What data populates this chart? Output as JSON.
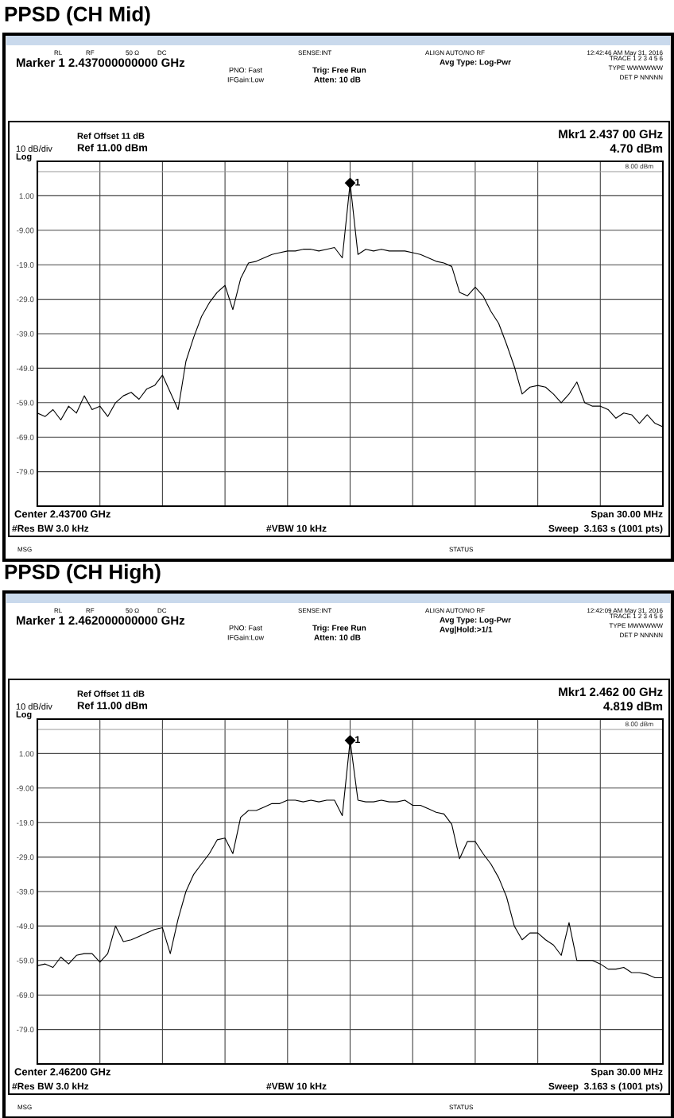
{
  "chart_data": [
    {
      "type": "line",
      "title": "PPSD (CH Mid)",
      "categories": [
        null,
        null,
        null,
        null,
        null,
        null,
        null,
        null,
        null,
        null,
        null,
        null,
        null,
        null,
        null,
        null,
        null,
        null,
        null,
        null,
        null,
        null,
        null,
        null,
        null,
        null,
        null,
        null,
        null,
        null,
        null,
        null,
        null,
        null,
        null,
        null,
        null,
        null,
        null,
        null,
        null,
        null,
        null,
        null,
        null,
        null,
        null,
        null,
        null,
        null,
        null,
        null,
        null,
        null,
        null,
        null,
        null,
        null,
        null,
        null,
        null,
        null,
        null,
        null,
        null,
        null,
        null,
        null,
        null,
        null,
        null,
        null,
        null,
        null,
        null,
        null,
        null,
        null,
        null,
        null,
        null
      ],
      "series": [
        {
          "color": "#000000",
          "values": [
            -62,
            -63,
            -61,
            -64,
            -60,
            -62,
            -57,
            -61,
            -60,
            -63,
            -59,
            -57,
            -56,
            -58,
            -55,
            -54,
            -51,
            -56,
            -61,
            -47,
            -40,
            -34,
            -30,
            -27,
            -25,
            -32,
            -23,
            -18.5,
            -18,
            -17,
            -16,
            -15.5,
            -15,
            -15,
            -14.5,
            -14.5,
            -15,
            -14.5,
            -14,
            -17,
            4.7,
            -16,
            -14.5,
            -15,
            -14.5,
            -15,
            -15,
            -15,
            -15.5,
            -16,
            -17,
            -18,
            -18.5,
            -19.5,
            -27,
            -28,
            -25.5,
            -28,
            -32.5,
            -36,
            -42,
            -48.5,
            -56.5,
            -54.5,
            -54,
            -54.5,
            -56.5,
            -59,
            -56.5,
            -53,
            -59,
            -60,
            -60,
            -61,
            -63.5,
            -62,
            -62.5,
            -65,
            -62.5,
            -65,
            -66
          ]
        }
      ],
      "ylim": [
        -89,
        11
      ],
      "yticks": [
        {
          "value": 1,
          "label": "1.00"
        },
        {
          "value": -9,
          "label": "-9.00"
        },
        {
          "value": -19,
          "label": "-19.0"
        },
        {
          "value": -29,
          "label": "-29.0"
        },
        {
          "value": -39,
          "label": "-39.0"
        },
        {
          "value": -49,
          "label": "-49.0"
        },
        {
          "value": -59,
          "label": "-59.0"
        },
        {
          "value": -69,
          "label": "-69.0"
        },
        {
          "value": -79,
          "label": "-79.0"
        }
      ],
      "grid": true,
      "ref_lines": [
        {
          "axis": "y",
          "value": 8,
          "label": "8.00 dBm",
          "color": "#999999"
        }
      ],
      "annotations": [
        "RL",
        "RF",
        "50 Ω",
        "DC",
        "SENSE:INT",
        "ALIGN AUTO/NO RF",
        "12:42:46 AM May 31, 2016",
        "Marker 1 2.437000000000 GHz",
        "PNO: Fast",
        "IFGain:Low",
        "Trig: Free Run",
        "Atten: 10 dB",
        "Avg Type: Log-Pwr",
        "TRACE 1 2 3 4 5 6",
        "TYPE WWWWWW",
        "DET P NNNNN",
        "Mkr1 2.437 00 GHz",
        "4.70 dBm",
        "Ref Offset 11 dB",
        "Ref 11.00 dBm",
        "10 dB/div",
        "Log",
        "Center 2.43700 GHz",
        "#Res BW 3.0 kHz",
        "#VBW 10 kHz",
        "Span 30.00 MHz",
        "Sweep  3.163 s (1001 pts)",
        "MSG",
        "STATUS",
        {
          "text": "1",
          "y": 4.7
        }
      ]
    },
    {
      "type": "line",
      "title": "PPSD (CH High)",
      "categories": [
        null,
        null,
        null,
        null,
        null,
        null,
        null,
        null,
        null,
        null,
        null,
        null,
        null,
        null,
        null,
        null,
        null,
        null,
        null,
        null,
        null,
        null,
        null,
        null,
        null,
        null,
        null,
        null,
        null,
        null,
        null,
        null,
        null,
        null,
        null,
        null,
        null,
        null,
        null,
        null,
        null,
        null,
        null,
        null,
        null,
        null,
        null,
        null,
        null,
        null,
        null,
        null,
        null,
        null,
        null,
        null,
        null,
        null,
        null,
        null,
        null,
        null,
        null,
        null,
        null,
        null,
        null,
        null,
        null,
        null,
        null,
        null,
        null,
        null,
        null,
        null,
        null,
        null,
        null,
        null,
        null
      ],
      "series": [
        {
          "color": "#000000",
          "values": [
            -60.5,
            -60,
            -61,
            -58,
            -60,
            -57.5,
            -57,
            -57,
            -59.5,
            -57,
            -49,
            -53.5,
            -53,
            -52,
            -51,
            -50,
            -49.5,
            -57,
            -47,
            -39,
            -34,
            -31,
            -28,
            -24,
            -23.5,
            -28,
            -17.5,
            -15.5,
            -15.5,
            -14.5,
            -13.5,
            -13.5,
            -12.5,
            -12.5,
            -13,
            -12.5,
            -13,
            -12.5,
            -12.5,
            -17,
            4.819,
            -12.5,
            -13,
            -13,
            -12.5,
            -13,
            -13,
            -12.5,
            -14,
            -14,
            -15,
            -16,
            -16.5,
            -19.5,
            -29.5,
            -24.5,
            -24.5,
            -28,
            -31,
            -35,
            -40.5,
            -49,
            -53,
            -51,
            -51,
            -53,
            -54.5,
            -57.5,
            -48,
            -59,
            -59,
            -59,
            -60,
            -61.5,
            -61.5,
            -61,
            -62.5,
            -62.5,
            -63,
            -64,
            -64
          ]
        }
      ],
      "ylim": [
        -89,
        11
      ],
      "yticks": [
        {
          "value": 1,
          "label": "1.00"
        },
        {
          "value": -9,
          "label": "-9.00"
        },
        {
          "value": -19,
          "label": "-19.0"
        },
        {
          "value": -29,
          "label": "-29.0"
        },
        {
          "value": -39,
          "label": "-39.0"
        },
        {
          "value": -49,
          "label": "-49.0"
        },
        {
          "value": -59,
          "label": "-59.0"
        },
        {
          "value": -69,
          "label": "-69.0"
        },
        {
          "value": -79,
          "label": "-79.0"
        }
      ],
      "grid": true,
      "ref_lines": [
        {
          "axis": "y",
          "value": 8,
          "label": "8.00 dBm",
          "color": "#999999"
        }
      ],
      "annotations": [
        "RL",
        "RF",
        "50 Ω",
        "DC",
        "SENSE:INT",
        "ALIGN AUTO/NO RF",
        "12:42:09 AM May 31, 2016",
        "Marker 1 2.462000000000 GHz",
        "PNO: Fast",
        "IFGain:Low",
        "Trig: Free Run",
        "Atten: 10 dB",
        "Avg Type: Log-Pwr",
        "TRACE 1 2 3 4 5 6",
        "TYPE MWWWWW",
        "DET P NNNNN",
        "Mkr1 2.462 00 GHz",
        "4.819 dBm",
        "Ref Offset 11 dB",
        "Ref 11.00 dBm",
        "10 dB/div",
        "Log",
        "Center 2.46200 GHz",
        "#Res BW 3.0 kHz",
        "#VBW 10 kHz",
        "Span 30.00 MHz",
        "Sweep  3.163 s (1001 pts)",
        "MSG",
        "STATUS",
        {
          "text": "1",
          "y": 4.819
        },
        "Avg|Hold:>1/1"
      ]
    }
  ]
}
